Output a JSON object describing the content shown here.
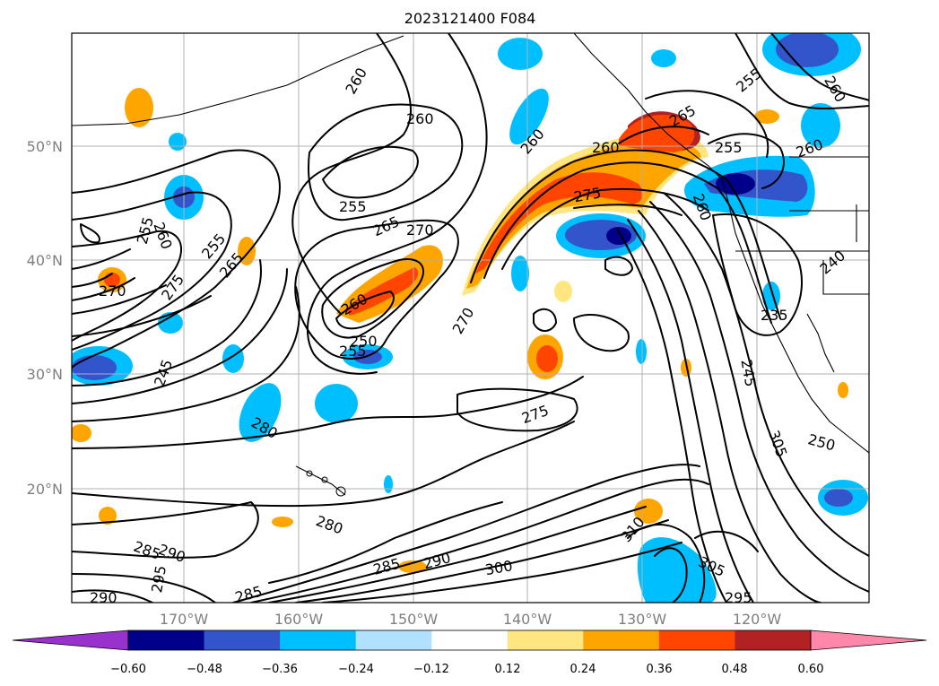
{
  "title": "2023121400 F084",
  "lat_labels": [
    "50°N",
    "40°N",
    "30°N",
    "20°N"
  ],
  "lon_labels": [
    "170°W",
    "160°W",
    "150°W",
    "140°W",
    "130°W",
    "120°W"
  ],
  "contour_labels": [
    "260",
    "260",
    "255",
    "265",
    "270",
    "275",
    "255",
    "260",
    "255",
    "265",
    "270",
    "275",
    "250",
    "255",
    "260",
    "270",
    "275",
    "280",
    "280",
    "285",
    "290",
    "295",
    "290",
    "285",
    "285",
    "290",
    "300",
    "310",
    "305",
    "295",
    "305",
    "245",
    "250",
    "235",
    "240",
    "260",
    "265",
    "260",
    "255",
    "260",
    "245",
    "255",
    "260",
    "260"
  ],
  "colorbar": {
    "ticks": [
      "−0.60",
      "−0.48",
      "−0.36",
      "−0.24",
      "−0.12",
      "0.12",
      "0.24",
      "0.36",
      "0.48",
      "0.60"
    ],
    "colors": {
      "under": "#9932cc",
      "bins": [
        "#00008b",
        "#3355cc",
        "#00bfff",
        "#b0e2ff",
        "#ffffff",
        "#ffe680",
        "#ffa500",
        "#ff4500",
        "#b22222"
      ],
      "over": "#ff88aa"
    }
  }
}
